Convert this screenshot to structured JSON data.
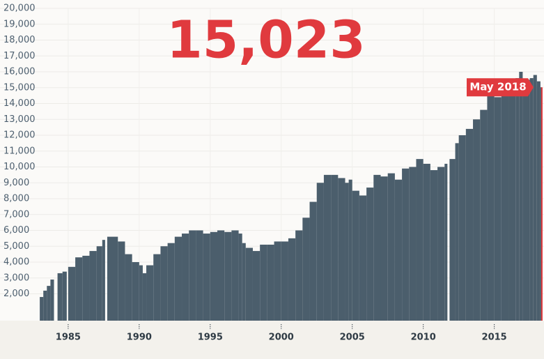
{
  "chart_data": {
    "type": "bar",
    "headline": {
      "value": 15023,
      "label": "15,023"
    },
    "annotation": "May 2018",
    "color": "#4b5e6c",
    "highlight_color": "#e03a3e",
    "x": [
      1983.0,
      1983.25,
      1983.5,
      1983.75,
      1984.0,
      1984.25,
      1984.6,
      1984.9,
      1985.0,
      1985.5,
      1986.0,
      1986.5,
      1987.0,
      1987.4,
      1987.6,
      1987.75,
      1988.5,
      1989.0,
      1989.5,
      1990.0,
      1990.25,
      1990.5,
      1991.0,
      1991.5,
      1992.0,
      1992.5,
      1993.0,
      1993.5,
      1994.0,
      1994.5,
      1995.0,
      1995.5,
      1996.0,
      1996.5,
      1997.0,
      1997.25,
      1997.5,
      1998.0,
      1998.5,
      1999.0,
      1999.5,
      2000.0,
      2000.5,
      2001.0,
      2001.5,
      2002.0,
      2002.5,
      2003.0,
      2003.5,
      2004.0,
      2004.5,
      2004.75,
      2005.0,
      2005.5,
      2006.0,
      2006.5,
      2007.0,
      2007.5,
      2008.0,
      2008.5,
      2009.0,
      2009.5,
      2010.0,
      2010.5,
      2011.0,
      2011.5,
      2011.7,
      2011.85,
      2012.25,
      2012.5,
      2013.0,
      2013.5,
      2014.0,
      2014.5,
      2015.0,
      2015.5,
      2016.0,
      2016.5,
      2016.75,
      2017.0,
      2017.5,
      2017.75,
      2018.0,
      2018.25
    ],
    "values": [
      1800,
      2200,
      2500,
      2900,
      null,
      3300,
      3400,
      null,
      3700,
      4300,
      4400,
      4700,
      5000,
      5400,
      null,
      5600,
      5300,
      4500,
      4000,
      3800,
      3300,
      3800,
      4500,
      5000,
      5200,
      5600,
      5800,
      6000,
      6000,
      5800,
      5900,
      6000,
      5900,
      6000,
      5800,
      5200,
      4900,
      4700,
      5100,
      5100,
      5300,
      5300,
      5500,
      6000,
      6800,
      7800,
      9000,
      9500,
      9500,
      9300,
      9000,
      9200,
      8500,
      8200,
      8700,
      9500,
      9400,
      9600,
      9200,
      9900,
      10000,
      10500,
      10200,
      9800,
      10000,
      10200,
      null,
      10500,
      11500,
      12000,
      12400,
      13000,
      13600,
      14600,
      14400,
      15000,
      15200,
      15600,
      16000,
      15500,
      15600,
      15800,
      15400,
      15023
    ],
    "xlim": [
      1980.2,
      2018.5
    ],
    "ylim": [
      0,
      20000
    ],
    "xticks": [
      1985,
      1990,
      1995,
      2000,
      2005,
      2010,
      2015
    ],
    "yticks": [
      {
        "value": 2000,
        "label": "2,000"
      },
      {
        "value": 3000,
        "label": "3,000"
      },
      {
        "value": 4000,
        "label": "4,000"
      },
      {
        "value": 5000,
        "label": "5,000"
      },
      {
        "value": 6000,
        "label": "6,000"
      },
      {
        "value": 7000,
        "label": "7,000"
      },
      {
        "value": 8000,
        "label": "8,000"
      },
      {
        "value": 9000,
        "label": "9,000"
      },
      {
        "value": 10000,
        "label": "10,000"
      },
      {
        "value": 11000,
        "label": "11,000"
      },
      {
        "value": 12000,
        "label": "12,000"
      },
      {
        "value": 13000,
        "label": "13,000"
      },
      {
        "value": 14000,
        "label": "14,000"
      },
      {
        "value": 15000,
        "label": "15,000"
      },
      {
        "value": 16000,
        "label": "16,000"
      },
      {
        "value": 17000,
        "label": "17,000"
      },
      {
        "value": 18000,
        "label": "18,000"
      },
      {
        "value": 19000,
        "label": "19,000"
      },
      {
        "value": 20000,
        "label": "20,000"
      }
    ],
    "grid": true
  }
}
